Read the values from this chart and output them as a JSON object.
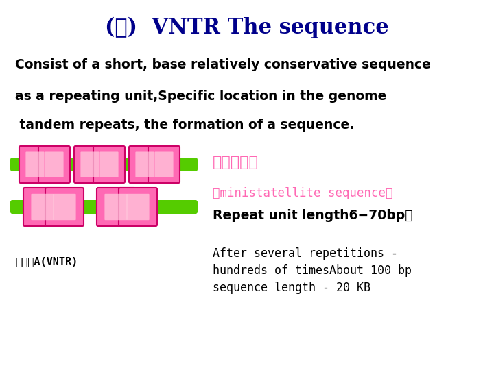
{
  "title_chinese": "(一)",
  "title_english": "  VNTR The sequence",
  "title_color": "#00008B",
  "line1": "Consist of a short, base relatively conservative sequence",
  "line2": "as a repeating unit,Specific location in the genome",
  "line3": " tandem repeats, the formation of a sequence.",
  "chinese_label": "小卫星序列",
  "mono_label": "（ministatellite sequence）",
  "repeat_label": "Repeat unit length6−70bp，",
  "bottom_left": "基因座A(VNTR)",
  "bottom_right_l1": "After several repetitions -",
  "bottom_right_l2": "hundreds of timesAbout 100 bp",
  "bottom_right_l3": "sequence length - 20 KB",
  "text_color_black": "#000000",
  "text_color_pink": "#FF69B4",
  "text_color_darkblue": "#00008B",
  "bar_pink": "#FF69B4",
  "bar_pink_light": "#FFB6C1",
  "bar_line_green": "#55CC00",
  "background": "#FFFFFF",
  "fig_w": 7.2,
  "fig_h": 5.4,
  "dpi": 100
}
